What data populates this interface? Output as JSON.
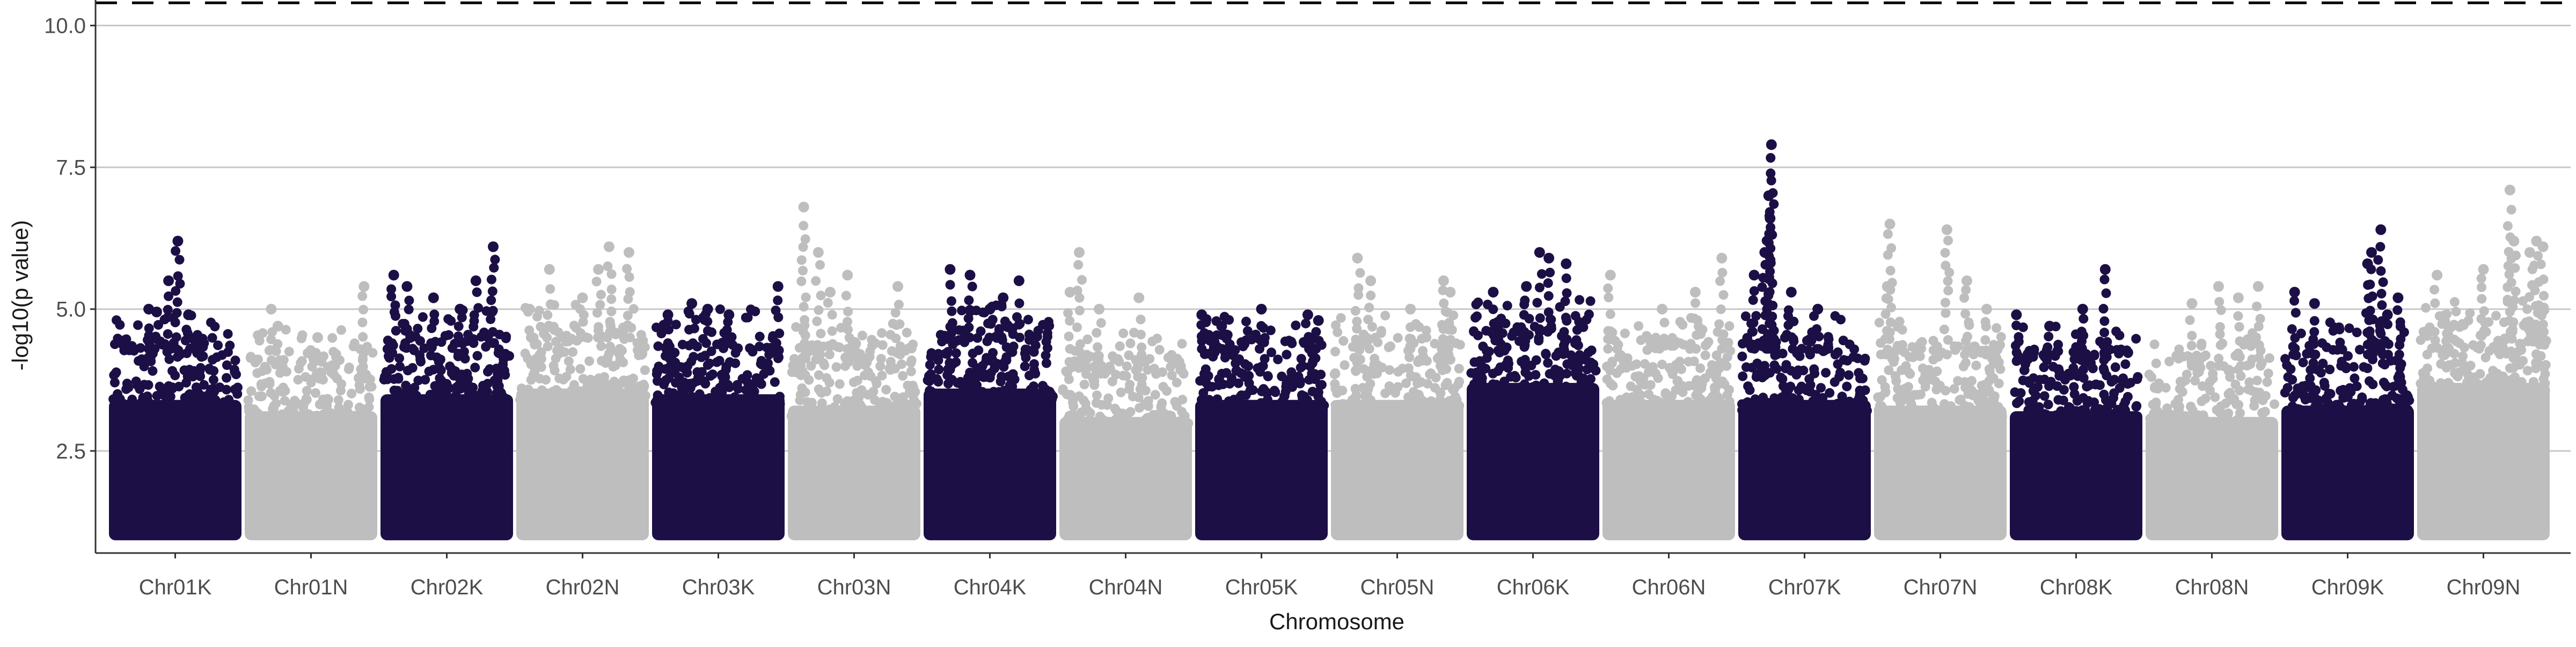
{
  "chart_data": {
    "type": "scatter",
    "subtype": "manhattan",
    "title": "",
    "xlabel": "Chromosome",
    "ylabel": "-log10(p value)",
    "ylim": [
      0.7,
      10.45
    ],
    "yticks": [
      2.5,
      5.0,
      7.5,
      10.0
    ],
    "ytick_labels": [
      "2.5",
      "5.0",
      "7.5",
      "10.0"
    ],
    "grid": "horizontal major lines",
    "legend": "none",
    "threshold": {
      "value": 10.4,
      "style": "dashed",
      "color": "#000000"
    },
    "colors": {
      "odd": "#1c0f45",
      "even": "#bebebe",
      "grid": "#c8c8c8",
      "axis": "#333333"
    },
    "base_value": 1.0,
    "chromosomes": [
      {
        "name": "Chr01K",
        "color": "#1c0f45",
        "band_max": 4.3,
        "peaks": [
          [
            0.52,
            6.2
          ],
          [
            0.45,
            5.5
          ],
          [
            0.3,
            5.0
          ],
          [
            0.6,
            4.9
          ],
          [
            0.36,
            4.95
          ]
        ]
      },
      {
        "name": "Chr01N",
        "color": "#bebebe",
        "band_max": 4.1,
        "peaks": [
          [
            0.2,
            5.0
          ],
          [
            0.9,
            5.4
          ],
          [
            0.25,
            4.7
          ],
          [
            0.55,
            4.5
          ]
        ]
      },
      {
        "name": "Chr02K",
        "color": "#1c0f45",
        "band_max": 4.4,
        "peaks": [
          [
            0.1,
            5.6
          ],
          [
            0.2,
            5.4
          ],
          [
            0.4,
            5.2
          ],
          [
            0.72,
            5.5
          ],
          [
            0.85,
            6.1
          ],
          [
            0.6,
            5.0
          ]
        ]
      },
      {
        "name": "Chr02N",
        "color": "#bebebe",
        "band_max": 4.5,
        "peaks": [
          [
            0.25,
            5.7
          ],
          [
            0.7,
            6.1
          ],
          [
            0.62,
            5.7
          ],
          [
            0.85,
            6.0
          ],
          [
            0.1,
            5.0
          ],
          [
            0.5,
            5.2
          ]
        ]
      },
      {
        "name": "Chr03K",
        "color": "#1c0f45",
        "band_max": 4.4,
        "peaks": [
          [
            0.12,
            4.9
          ],
          [
            0.3,
            5.1
          ],
          [
            0.42,
            5.0
          ],
          [
            0.58,
            4.9
          ],
          [
            0.95,
            5.4
          ]
        ]
      },
      {
        "name": "Chr03N",
        "color": "#bebebe",
        "band_max": 4.2,
        "peaks": [
          [
            0.12,
            6.8
          ],
          [
            0.23,
            6.0
          ],
          [
            0.32,
            5.3
          ],
          [
            0.45,
            5.6
          ],
          [
            0.83,
            5.4
          ]
        ]
      },
      {
        "name": "Chr04K",
        "color": "#1c0f45",
        "band_max": 4.5,
        "peaks": [
          [
            0.2,
            5.7
          ],
          [
            0.35,
            5.6
          ],
          [
            0.72,
            5.5
          ],
          [
            0.5,
            5.0
          ],
          [
            0.6,
            5.2
          ]
        ]
      },
      {
        "name": "Chr04N",
        "color": "#bebebe",
        "band_max": 4.0,
        "peaks": [
          [
            0.15,
            6.0
          ],
          [
            0.08,
            5.3
          ],
          [
            0.3,
            5.0
          ],
          [
            0.6,
            5.2
          ]
        ]
      },
      {
        "name": "Chr05K",
        "color": "#1c0f45",
        "band_max": 4.3,
        "peaks": [
          [
            0.05,
            4.9
          ],
          [
            0.2,
            4.7
          ],
          [
            0.5,
            5.0
          ],
          [
            0.85,
            4.9
          ],
          [
            0.93,
            4.8
          ]
        ]
      },
      {
        "name": "Chr05N",
        "color": "#bebebe",
        "band_max": 4.3,
        "peaks": [
          [
            0.2,
            5.9
          ],
          [
            0.3,
            5.5
          ],
          [
            0.6,
            5.0
          ],
          [
            0.85,
            5.5
          ],
          [
            0.9,
            5.3
          ]
        ]
      },
      {
        "name": "Chr06K",
        "color": "#1c0f45",
        "band_max": 4.6,
        "peaks": [
          [
            0.2,
            5.3
          ],
          [
            0.55,
            6.0
          ],
          [
            0.62,
            5.9
          ],
          [
            0.75,
            5.8
          ],
          [
            0.45,
            5.4
          ]
        ]
      },
      {
        "name": "Chr06N",
        "color": "#bebebe",
        "band_max": 4.3,
        "peaks": [
          [
            0.06,
            5.6
          ],
          [
            0.9,
            5.9
          ],
          [
            0.45,
            5.0
          ],
          [
            0.7,
            5.3
          ]
        ]
      },
      {
        "name": "Chr07K",
        "color": "#1c0f45",
        "band_max": 4.3,
        "peaks": [
          [
            0.25,
            7.9
          ],
          [
            0.23,
            7.0
          ],
          [
            0.24,
            6.6
          ],
          [
            0.2,
            6.0
          ],
          [
            0.12,
            5.6
          ],
          [
            0.4,
            5.3
          ],
          [
            0.6,
            5.0
          ]
        ]
      },
      {
        "name": "Chr07N",
        "color": "#bebebe",
        "band_max": 4.2,
        "peaks": [
          [
            0.12,
            6.5
          ],
          [
            0.55,
            6.4
          ],
          [
            0.7,
            5.5
          ],
          [
            0.1,
            5.4
          ],
          [
            0.85,
            5.0
          ]
        ]
      },
      {
        "name": "Chr08K",
        "color": "#1c0f45",
        "band_max": 4.1,
        "peaks": [
          [
            0.72,
            5.7
          ],
          [
            0.05,
            4.9
          ],
          [
            0.55,
            5.0
          ],
          [
            0.3,
            4.7
          ]
        ]
      },
      {
        "name": "Chr08N",
        "color": "#bebebe",
        "band_max": 4.0,
        "peaks": [
          [
            0.55,
            5.4
          ],
          [
            0.35,
            5.1
          ],
          [
            0.85,
            5.4
          ],
          [
            0.7,
            5.2
          ]
        ]
      },
      {
        "name": "Chr09K",
        "color": "#1c0f45",
        "band_max": 4.2,
        "peaks": [
          [
            0.75,
            6.4
          ],
          [
            0.68,
            6.0
          ],
          [
            0.65,
            5.8
          ],
          [
            0.1,
            5.3
          ],
          [
            0.25,
            5.1
          ],
          [
            0.88,
            5.2
          ],
          [
            0.8,
            4.9
          ]
        ]
      },
      {
        "name": "Chr09N",
        "color": "#bebebe",
        "band_max": 4.6,
        "peaks": [
          [
            0.7,
            7.1
          ],
          [
            0.73,
            6.2
          ],
          [
            0.9,
            6.2
          ],
          [
            0.85,
            6.0
          ],
          [
            0.5,
            5.7
          ],
          [
            0.15,
            5.6
          ],
          [
            0.95,
            6.1
          ]
        ]
      }
    ]
  }
}
